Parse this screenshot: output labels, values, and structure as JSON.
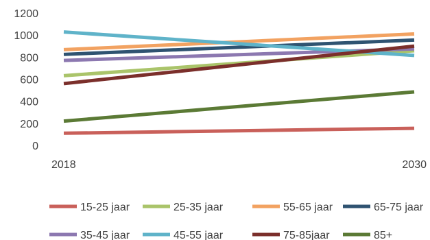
{
  "chart_data": {
    "type": "line",
    "x": [
      "2018",
      "2030"
    ],
    "ylim": [
      0,
      1200
    ],
    "yticks": [
      0,
      200,
      400,
      600,
      800,
      1000,
      1200
    ],
    "grid": false,
    "legend_position": "bottom",
    "series": [
      {
        "name": "15-25 jaar",
        "color": "#c9605a",
        "values": [
          110,
          155
        ]
      },
      {
        "name": "25-35 jaar",
        "color": "#aac46a",
        "values": [
          632,
          858
        ]
      },
      {
        "name": "55-65 jaar",
        "color": "#f2a261",
        "values": [
          868,
          1010
        ]
      },
      {
        "name": "65-75 jaar",
        "color": "#2f5371",
        "values": [
          825,
          955
        ]
      },
      {
        "name": "35-45 jaar",
        "color": "#8c78b0",
        "values": [
          770,
          875
        ]
      },
      {
        "name": "45-55 jaar",
        "color": "#5fb3c9",
        "values": [
          1028,
          815
        ]
      },
      {
        "name": "75-85jaar",
        "color": "#7b2f2b",
        "values": [
          560,
          900
        ]
      },
      {
        "name": "85+",
        "color": "#5b7a35",
        "values": [
          220,
          485
        ]
      }
    ]
  }
}
